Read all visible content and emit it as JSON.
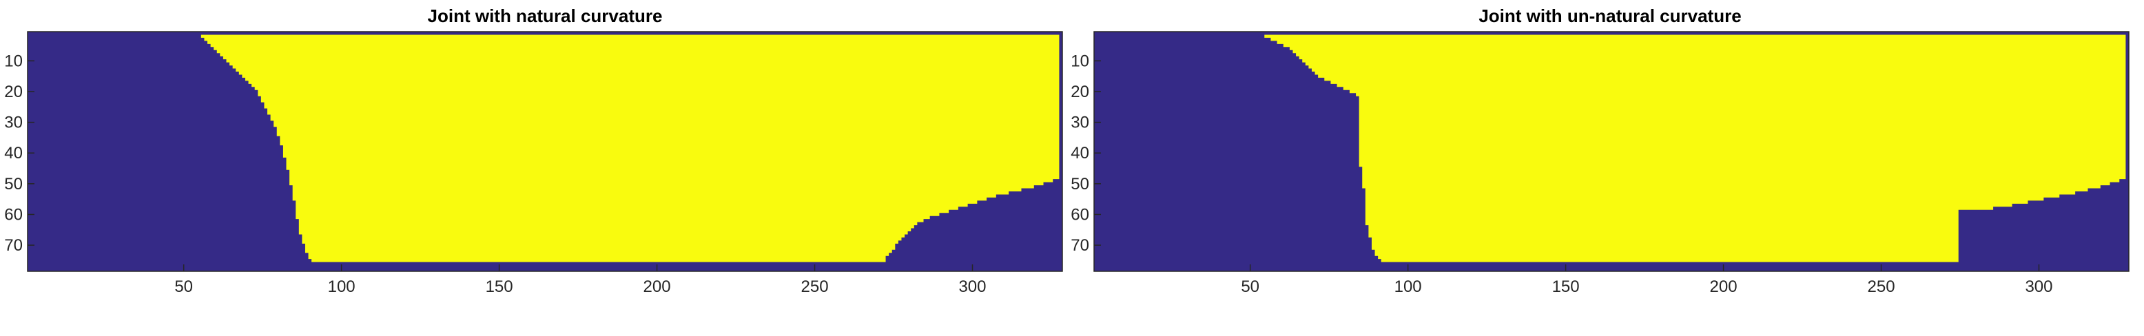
{
  "chart_data": [
    {
      "type": "heatmap",
      "title": "Joint with natural curvature",
      "xlabel": "",
      "ylabel": "",
      "x_range": [
        0.5,
        328.5
      ],
      "y_range": [
        0.5,
        78.5
      ],
      "y_direction": "reversed",
      "x_ticks": [
        50,
        100,
        150,
        200,
        250,
        300
      ],
      "y_ticks": [
        10,
        20,
        30,
        40,
        50,
        60,
        70
      ],
      "colors": {
        "background": "#352a87",
        "region": "#f9fb0e"
      },
      "grid": false,
      "region": {
        "top_row": 2,
        "bottom_row": 75,
        "left_boundary": [
          [
            2,
            56
          ],
          [
            3,
            57
          ],
          [
            4,
            58
          ],
          [
            5,
            59
          ],
          [
            6,
            60
          ],
          [
            7,
            61
          ],
          [
            8,
            62
          ],
          [
            9,
            63
          ],
          [
            10,
            64
          ],
          [
            11,
            65
          ],
          [
            12,
            66
          ],
          [
            13,
            67
          ],
          [
            14,
            68
          ],
          [
            15,
            69
          ],
          [
            16,
            70
          ],
          [
            17,
            71
          ],
          [
            18,
            72
          ],
          [
            19,
            73
          ],
          [
            20,
            74
          ],
          [
            22,
            75
          ],
          [
            24,
            76
          ],
          [
            26,
            77
          ],
          [
            28,
            78
          ],
          [
            30,
            79
          ],
          [
            32,
            80
          ],
          [
            35,
            81
          ],
          [
            38,
            82
          ],
          [
            42,
            83
          ],
          [
            46,
            84
          ],
          [
            51,
            85
          ],
          [
            56,
            86
          ],
          [
            62,
            87
          ],
          [
            67,
            88
          ],
          [
            70,
            89
          ],
          [
            73,
            90
          ],
          [
            75,
            91
          ]
        ],
        "right_boundary": [
          [
            2,
            327
          ],
          [
            48,
            327
          ],
          [
            49,
            325
          ],
          [
            50,
            322
          ],
          [
            51,
            319
          ],
          [
            52,
            315
          ],
          [
            53,
            311
          ],
          [
            54,
            307
          ],
          [
            55,
            304
          ],
          [
            56,
            301
          ],
          [
            57,
            298
          ],
          [
            58,
            295
          ],
          [
            59,
            292
          ],
          [
            60,
            289
          ],
          [
            61,
            286
          ],
          [
            62,
            284
          ],
          [
            63,
            282
          ],
          [
            64,
            281
          ],
          [
            65,
            280
          ],
          [
            66,
            279
          ],
          [
            67,
            278
          ],
          [
            68,
            277
          ],
          [
            69,
            276
          ],
          [
            70,
            275
          ],
          [
            71,
            275
          ],
          [
            72,
            274
          ],
          [
            73,
            273
          ],
          [
            74,
            272
          ],
          [
            75,
            272
          ]
        ]
      }
    },
    {
      "type": "heatmap",
      "title": "Joint with un-natural curvature",
      "xlabel": "",
      "ylabel": "",
      "x_range": [
        0.5,
        328.5
      ],
      "y_range": [
        0.5,
        78.5
      ],
      "y_direction": "reversed",
      "x_ticks": [
        50,
        100,
        150,
        200,
        250,
        300
      ],
      "y_ticks": [
        10,
        20,
        30,
        40,
        50,
        60,
        70
      ],
      "colors": {
        "background": "#352a87",
        "region": "#f9fb0e"
      },
      "grid": false,
      "region": {
        "top_row": 2,
        "bottom_row": 75,
        "left_boundary": [
          [
            2,
            55
          ],
          [
            3,
            57
          ],
          [
            4,
            59
          ],
          [
            5,
            61
          ],
          [
            6,
            63
          ],
          [
            7,
            64
          ],
          [
            8,
            65
          ],
          [
            9,
            66
          ],
          [
            10,
            67
          ],
          [
            11,
            68
          ],
          [
            12,
            69
          ],
          [
            13,
            70
          ],
          [
            14,
            71
          ],
          [
            15,
            72
          ],
          [
            16,
            74
          ],
          [
            17,
            76
          ],
          [
            18,
            78
          ],
          [
            19,
            80
          ],
          [
            20,
            82
          ],
          [
            21,
            84
          ],
          [
            22,
            85
          ],
          [
            44,
            85
          ],
          [
            45,
            86
          ],
          [
            51,
            86
          ],
          [
            52,
            87
          ],
          [
            63,
            87
          ],
          [
            64,
            88
          ],
          [
            67,
            88
          ],
          [
            68,
            89
          ],
          [
            71,
            89
          ],
          [
            72,
            90
          ],
          [
            74,
            91
          ],
          [
            75,
            92
          ]
        ],
        "right_boundary": [
          [
            2,
            327
          ],
          [
            48,
            327
          ],
          [
            49,
            325
          ],
          [
            50,
            322
          ],
          [
            51,
            319
          ],
          [
            52,
            315
          ],
          [
            53,
            311
          ],
          [
            54,
            306
          ],
          [
            55,
            301
          ],
          [
            56,
            296
          ],
          [
            57,
            291
          ],
          [
            58,
            285
          ],
          [
            59,
            274
          ],
          [
            75,
            274
          ]
        ]
      }
    }
  ]
}
